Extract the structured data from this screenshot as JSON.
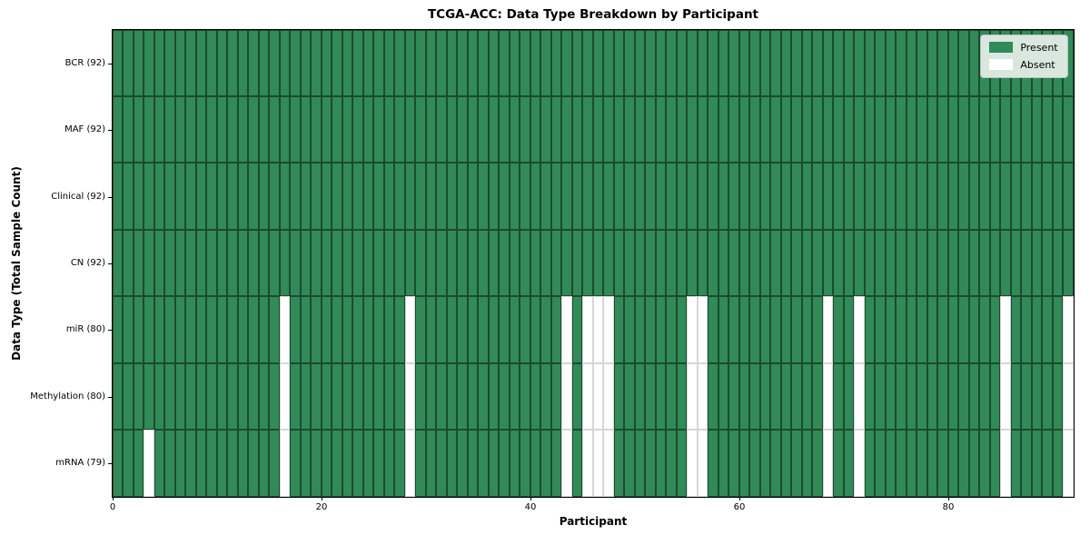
{
  "chart_data": {
    "type": "heatmap",
    "title": "TCGA-ACC: Data Type Breakdown by Participant",
    "xlabel": "Participant",
    "ylabel": "Data Type (Total Sample Count)",
    "n_participants": 92,
    "x_range": [
      0,
      92
    ],
    "x_ticks": [
      0,
      20,
      40,
      60,
      80
    ],
    "grid": "off",
    "legend_position": "upper right",
    "value_encoding": "1 = Present (green cell), 0 = Absent (white cell); one column per participant index 0-91",
    "rows": [
      {
        "label": "BCR (92)",
        "data_type": "BCR",
        "present_count": 92,
        "absent_participants": []
      },
      {
        "label": "MAF (92)",
        "data_type": "MAF",
        "present_count": 92,
        "absent_participants": []
      },
      {
        "label": "Clinical (92)",
        "data_type": "Clinical",
        "present_count": 92,
        "absent_participants": []
      },
      {
        "label": "CN (92)",
        "data_type": "CN",
        "present_count": 92,
        "absent_participants": []
      },
      {
        "label": "miR (80)",
        "data_type": "miR",
        "present_count": 80,
        "absent_participants": [
          16,
          28,
          43,
          45,
          46,
          47,
          55,
          56,
          68,
          71,
          85,
          91
        ]
      },
      {
        "label": "Methylation (80)",
        "data_type": "Methylation",
        "present_count": 80,
        "absent_participants": [
          16,
          28,
          43,
          45,
          46,
          47,
          55,
          56,
          68,
          71,
          85,
          91
        ]
      },
      {
        "label": "mRNA (79)",
        "data_type": "mRNA",
        "present_count": 79,
        "absent_participants": [
          3,
          16,
          28,
          43,
          45,
          46,
          47,
          55,
          56,
          68,
          71,
          85,
          91
        ]
      }
    ],
    "legend": [
      {
        "label": "Present",
        "color": "#318a58"
      },
      {
        "label": "Absent",
        "color": "#ffffff"
      }
    ]
  },
  "colors": {
    "present": "#318a58",
    "absent": "#ffffff",
    "cell_edge_present": "rgba(5,25,12,0.55)",
    "cell_edge_absent": "rgba(0,0,0,0.16)",
    "legend_background": "#d9e7de",
    "legend_border": "#b8c6bc",
    "spine": "#000000"
  }
}
